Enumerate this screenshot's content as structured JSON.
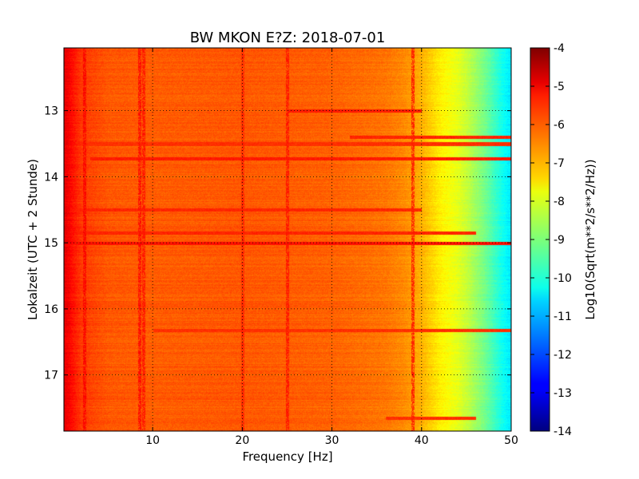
{
  "chart_data": {
    "type": "heatmap",
    "title": "BW MKON E?Z: 2018-07-01",
    "xlabel": "Frequency [Hz]",
    "ylabel": "Lokalzeit (UTC + 2 Stunde)",
    "xlim": [
      0.1,
      50
    ],
    "ylim": [
      12.05,
      17.85
    ],
    "y_inverted": true,
    "x_ticks": [
      10,
      20,
      30,
      40,
      50
    ],
    "y_ticks": [
      13,
      14,
      15,
      16,
      17
    ],
    "grid": true,
    "colorbar": {
      "label": "Log10(Sqrt(m**2/s**2/Hz))",
      "range": [
        -14,
        -4
      ],
      "ticks": [
        -4,
        -5,
        -6,
        -7,
        -8,
        -9,
        -10,
        -11,
        -12,
        -13,
        -14
      ],
      "colormap": "jet"
    },
    "frequency_profile": {
      "frequencies_hz": [
        0.1,
        2,
        5,
        10,
        20,
        30,
        36,
        38,
        40,
        41,
        42,
        43,
        44,
        45,
        46,
        47,
        48,
        49,
        50
      ],
      "log10_amplitude": [
        -5.0,
        -5.8,
        -6.1,
        -6.15,
        -6.1,
        -6.2,
        -6.4,
        -6.6,
        -7.0,
        -7.3,
        -7.6,
        -7.8,
        -8.0,
        -8.3,
        -8.7,
        -9.1,
        -9.6,
        -10.1,
        -10.5
      ]
    },
    "horizontal_bands": [
      {
        "time": 13.0,
        "fmin": 25,
        "fmax": 40,
        "log10_amplitude": -5.5
      },
      {
        "time": 13.4,
        "fmin": 32,
        "fmax": 50,
        "log10_amplitude": -5.6
      },
      {
        "time": 13.5,
        "fmin": 0.1,
        "fmax": 50,
        "log10_amplitude": -5.7
      },
      {
        "time": 13.72,
        "fmin": 3,
        "fmax": 50,
        "log10_amplitude": -5.5
      },
      {
        "time": 14.5,
        "fmin": 0.1,
        "fmax": 40,
        "log10_amplitude": -5.6
      },
      {
        "time": 14.85,
        "fmin": 0.1,
        "fmax": 46,
        "log10_amplitude": -5.6
      },
      {
        "time": 15.0,
        "fmin": 0.1,
        "fmax": 50,
        "log10_amplitude": -5.4
      },
      {
        "time": 16.32,
        "fmin": 10,
        "fmax": 50,
        "log10_amplitude": -5.7
      },
      {
        "time": 17.65,
        "fmin": 36,
        "fmax": 46,
        "log10_amplitude": -5.7
      }
    ],
    "vertical_lines": [
      {
        "freq_hz": 2.4,
        "log10_amplitude": -5.3
      },
      {
        "freq_hz": 8.5,
        "log10_amplitude": -5.4
      },
      {
        "freq_hz": 9.0,
        "log10_amplitude": -5.5
      },
      {
        "freq_hz": 20.0,
        "log10_amplitude": -5.6
      },
      {
        "freq_hz": 25.0,
        "log10_amplitude": -5.5
      },
      {
        "freq_hz": 39.0,
        "log10_amplitude": -5.6
      }
    ]
  }
}
